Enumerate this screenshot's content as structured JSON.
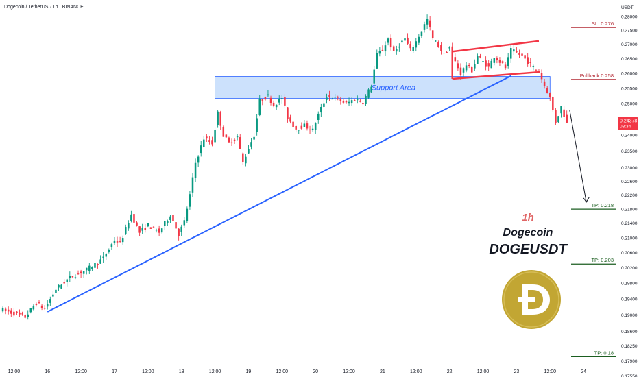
{
  "header": {
    "symbol_title": "Dogecoin / TetherUS · 1h · BINANCE",
    "currency": "USDT"
  },
  "colors": {
    "up": "#089981",
    "down": "#f23645",
    "support_fill": "#bbd7fb",
    "support_stroke": "#2962ff",
    "trendline": "#2962ff",
    "pattern": "#f23645",
    "level_red": "#b22833",
    "level_green": "#1b5e20",
    "price_badge": "#f23645",
    "doge_gold": "#c2a633"
  },
  "annotations": {
    "support_label": "Support Area",
    "timeframe": "1h",
    "coin_name": "Dogecoin",
    "pair": "DOGEUSDT"
  },
  "levels": [
    {
      "label": "SL: 0.276",
      "value": 0.276,
      "kind": "red"
    },
    {
      "label": "Pullback 0.258",
      "value": 0.258,
      "kind": "red"
    },
    {
      "label": "TP: 0.218",
      "value": 0.218,
      "kind": "green"
    },
    {
      "label": "TP: 0.203",
      "value": 0.203,
      "kind": "green"
    },
    {
      "label": "TP: 0.18",
      "value": 0.18,
      "kind": "green"
    }
  ],
  "price_badge": {
    "price": "0.24378",
    "countdown": "08:34",
    "value": 0.24378
  },
  "chart_data": {
    "type": "candlestick",
    "y_axis": {
      "scale": "log",
      "range": [
        0.1775,
        0.2825
      ],
      "ticks": [
        "0.28000",
        "0.27500",
        "0.27000",
        "0.26500",
        "0.26000",
        "0.25500",
        "0.25000",
        "0.24500",
        "0.24000",
        "0.23500",
        "0.23000",
        "0.22600",
        "0.22200",
        "0.21800",
        "0.21400",
        "0.21000",
        "0.20600",
        "0.20200",
        "0.19800",
        "0.19400",
        "0.19000",
        "0.18600",
        "0.18250",
        "0.17900",
        "0.17550"
      ],
      "tick_values": [
        0.28,
        0.275,
        0.27,
        0.265,
        0.26,
        0.255,
        0.25,
        0.245,
        0.24,
        0.235,
        0.23,
        0.226,
        0.222,
        0.218,
        0.214,
        0.21,
        0.206,
        0.202,
        0.198,
        0.194,
        0.19,
        0.186,
        0.1825,
        0.179,
        0.1755
      ]
    },
    "x_axis": {
      "ticks": [
        "12:00",
        "16",
        "12:00",
        "17",
        "12:00",
        "18",
        "12:00",
        "19",
        "12:00",
        "20",
        "12:00",
        "21",
        "12:00",
        "22",
        "12:00",
        "23",
        "12:00",
        "24"
      ],
      "tick_hours": [
        -12,
        0,
        12,
        24,
        36,
        48,
        60,
        72,
        84,
        96,
        108,
        120,
        132,
        144,
        156,
        168,
        180,
        192
      ],
      "start_hour": -17,
      "end_hour": 204
    },
    "series": [
      {
        "path": [
          [
            -17,
            0.1915
          ],
          [
            -8,
            0.1895
          ],
          [
            -4,
            0.193
          ],
          [
            -1,
            0.1915
          ],
          [
            3,
            0.1965
          ],
          [
            8,
            0.1995
          ],
          [
            14,
            0.2015
          ],
          [
            20,
            0.2045
          ],
          [
            24,
            0.2095
          ],
          [
            26,
            0.2085
          ],
          [
            30,
            0.2165
          ],
          [
            33,
            0.2115
          ],
          [
            36,
            0.2135
          ],
          [
            40,
            0.2115
          ],
          [
            44,
            0.2165
          ],
          [
            47,
            0.211
          ],
          [
            49,
            0.2145
          ],
          [
            51,
            0.222
          ],
          [
            53,
            0.2315
          ],
          [
            56,
            0.239
          ],
          [
            59,
            0.2375
          ],
          [
            61,
            0.247
          ],
          [
            63,
            0.24
          ],
          [
            65,
            0.2375
          ],
          [
            68,
            0.2395
          ],
          [
            70,
            0.2315
          ],
          [
            72,
            0.236
          ],
          [
            74,
            0.24
          ],
          [
            76,
            0.251
          ],
          [
            79,
            0.2525
          ],
          [
            81,
            0.2495
          ],
          [
            84,
            0.252
          ],
          [
            86,
            0.2455
          ],
          [
            89,
            0.242
          ],
          [
            92,
            0.243
          ],
          [
            95,
            0.2415
          ],
          [
            97,
            0.2465
          ],
          [
            100,
            0.2525
          ],
          [
            104,
            0.2515
          ],
          [
            107,
            0.25
          ],
          [
            110,
            0.2515
          ],
          [
            113,
            0.2505
          ],
          [
            116,
            0.256
          ],
          [
            118,
            0.2665
          ],
          [
            120,
            0.268
          ],
          [
            122,
            0.272
          ],
          [
            124,
            0.267
          ],
          [
            126,
            0.27
          ],
          [
            128,
            0.272
          ],
          [
            130,
            0.268
          ],
          [
            132,
            0.271
          ],
          [
            134,
            0.275
          ],
          [
            136,
            0.279
          ],
          [
            138,
            0.272
          ],
          [
            140,
            0.2695
          ],
          [
            142,
            0.2665
          ],
          [
            144,
            0.269
          ],
          [
            146,
            0.264
          ],
          [
            148,
            0.26
          ],
          [
            150,
            0.263
          ],
          [
            152,
            0.261
          ],
          [
            154,
            0.266
          ],
          [
            156,
            0.264
          ],
          [
            158,
            0.262
          ],
          [
            160,
            0.266
          ],
          [
            162,
            0.264
          ],
          [
            164,
            0.262
          ],
          [
            166,
            0.268
          ],
          [
            168,
            0.267
          ],
          [
            170,
            0.266
          ],
          [
            172,
            0.264
          ],
          [
            174,
            0.262
          ],
          [
            176,
            0.2605
          ],
          [
            178,
            0.256
          ],
          [
            180,
            0.252
          ],
          [
            182,
            0.244
          ],
          [
            184,
            0.249
          ],
          [
            186,
            0.2438
          ]
        ]
      }
    ],
    "overlays": {
      "support_zone": {
        "from_hour": 60,
        "to_hour": 180,
        "top": 0.259,
        "bottom": 0.2517
      },
      "trendline": {
        "from": [
          0,
          0.1908
        ],
        "to": [
          166,
          0.2592
        ]
      },
      "channel_top": {
        "from": [
          145,
          0.2675
        ],
        "to": [
          176,
          0.2712
        ]
      },
      "channel_bottom": {
        "from": [
          145,
          0.2582
        ],
        "to": [
          176,
          0.2605
        ]
      },
      "projection_arrow": {
        "from": [
          187,
          0.248
        ],
        "to": [
          193,
          0.22
        ]
      }
    }
  }
}
